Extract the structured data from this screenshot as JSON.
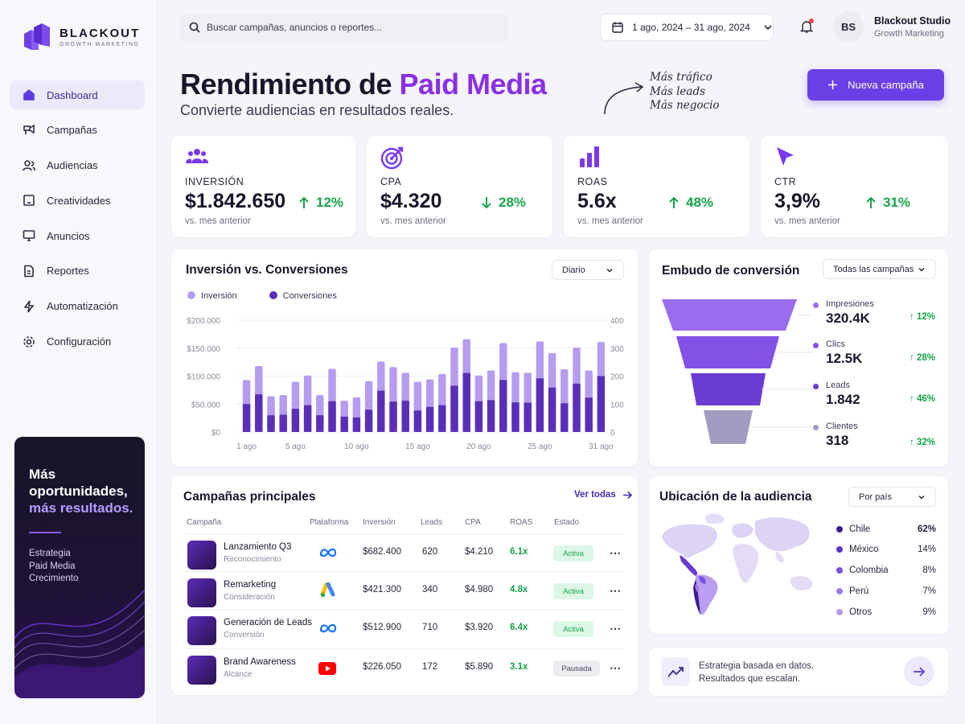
{
  "brand": {
    "name": "BLACKOUT",
    "tagline": "GROWTH MARKETING"
  },
  "sidebar": {
    "items": [
      {
        "label": "Dashboard",
        "icon": "home-icon",
        "active": true
      },
      {
        "label": "Campañas",
        "icon": "campaigns-icon"
      },
      {
        "label": "Audiencias",
        "icon": "users-icon"
      },
      {
        "label": "Creatividades",
        "icon": "image-icon"
      },
      {
        "label": "Anuncios",
        "icon": "monitor-icon"
      },
      {
        "label": "Reportes",
        "icon": "document-icon"
      },
      {
        "label": "Automatización",
        "icon": "bolt-icon"
      },
      {
        "label": "Configuración",
        "icon": "gear-icon"
      }
    ]
  },
  "promo": {
    "title_line1": "Más",
    "title_line2": "oportunidades,",
    "title_highlight": "más resultados.",
    "lines": [
      "Estrategia",
      "Paid Media",
      "Crecimiento"
    ]
  },
  "header": {
    "search_placeholder": "Buscar campañas, anuncios o reportes...",
    "date_range": "1 ago, 2024 – 31 ago, 2024",
    "user_initials": "BS",
    "user_name": "Blackout Studio",
    "user_role": "Growth Marketing"
  },
  "hero": {
    "title_part1": "Rendimiento de ",
    "title_accent": "Paid Media",
    "subtitle": "Convierte audiencias en resultados reales.",
    "script_lines": [
      "Más tráfico",
      "Más leads",
      "Más negocio"
    ],
    "cta": "Nueva campaña"
  },
  "kpis": [
    {
      "label": "INVERSIÓN",
      "value": "$1.842.650",
      "delta": "12%",
      "direction": "up",
      "note": "vs. mes anterior",
      "icon": "audience-icon"
    },
    {
      "label": "CPA",
      "value": "$4.320",
      "delta": "28%",
      "direction": "down",
      "note": "vs. mes anterior",
      "icon": "target-icon"
    },
    {
      "label": "ROAS",
      "value": "5.6x",
      "delta": "48%",
      "direction": "up",
      "note": "vs. mes anterior",
      "icon": "bar-chart-icon"
    },
    {
      "label": "CTR",
      "value": "3,9%",
      "delta": "31%",
      "direction": "up",
      "note": "vs. mes anterior",
      "icon": "cursor-icon"
    }
  ],
  "chart_section": {
    "title": "Inversión vs. Conversiones",
    "period": "Diario"
  },
  "chart_data": {
    "type": "bar",
    "series": [
      {
        "name": "Inversión",
        "color": "#b69cf0",
        "values": [
          93000,
          118000,
          64000,
          66000,
          90000,
          101000,
          66000,
          113000,
          56000,
          62000,
          91000,
          126000,
          116000,
          106000,
          90000,
          94000,
          104000,
          151000,
          166000,
          101000,
          110000,
          159000,
          107000,
          106000,
          162000,
          141000,
          112000,
          151000,
          110000,
          161000
        ]
      },
      {
        "name": "Conversiones",
        "color": "#5a2fb8",
        "values": [
          100,
          135,
          60,
          62,
          83,
          96,
          60,
          110,
          55,
          52,
          80,
          148,
          109,
          112,
          77,
          90,
          96,
          166,
          211,
          110,
          114,
          186,
          106,
          105,
          192,
          159,
          103,
          173,
          123,
          200
        ]
      }
    ],
    "x": [
      "1 ago",
      "2 ago",
      "3 ago",
      "4 ago",
      "5 ago",
      "6 ago",
      "7 ago",
      "8 ago",
      "9 ago",
      "10 ago",
      "11 ago",
      "12 ago",
      "13 ago",
      "14 ago",
      "15 ago",
      "16 ago",
      "17 ago",
      "18 ago",
      "19 ago",
      "20 ago",
      "21 ago",
      "22 ago",
      "23 ago",
      "24 ago",
      "25 ago",
      "26 ago",
      "27 ago",
      "28 ago",
      "29 ago",
      "31 ago"
    ],
    "x_tick_labels": [
      "1 ago",
      "5 ago",
      "10 ago",
      "15 ago",
      "20 ago",
      "25 ago",
      "31 ago"
    ],
    "y_left": {
      "ticks": [
        "$200.000",
        "$150.000",
        "$100.000",
        "$50.000",
        "$0"
      ],
      "range": [
        0,
        200000
      ]
    },
    "y_right": {
      "ticks": [
        "400",
        "300",
        "200",
        "100",
        "0"
      ],
      "range": [
        0,
        400
      ]
    },
    "legend": "top-left",
    "grid": true
  },
  "funnel": {
    "title": "Embudo de conversión",
    "filter": "Todas las campañas",
    "stages": [
      {
        "label": "Impresiones",
        "value": "320.4K",
        "delta": "12%",
        "color": "#9a6cf0"
      },
      {
        "label": "Clics",
        "value": "12.5K",
        "delta": "28%",
        "color": "#8351e6"
      },
      {
        "label": "Leads",
        "value": "1.842",
        "delta": "46%",
        "color": "#6a3cd1"
      },
      {
        "label": "Clientes",
        "value": "318",
        "delta": "32%",
        "color": "#a39cc0"
      }
    ]
  },
  "campaigns": {
    "title": "Campañas principales",
    "link": "Ver todas",
    "columns": [
      "Campaña",
      "Plataforma",
      "Inversión",
      "Leads",
      "CPA",
      "ROAS",
      "Estado"
    ],
    "rows": [
      {
        "name": "Lanzamiento Q3",
        "type": "Reconocimiento",
        "platform": "meta-icon",
        "investment": "$682.400",
        "leads": "620",
        "cpa": "$4.210",
        "roas": "6.1x",
        "status": "Activa",
        "state": "active"
      },
      {
        "name": "Remarketing",
        "type": "Consideración",
        "platform": "google-ads-icon",
        "investment": "$421.300",
        "leads": "340",
        "cpa": "$4.980",
        "roas": "4.8x",
        "status": "Activa",
        "state": "active"
      },
      {
        "name": "Generación de Leads",
        "type": "Conversión",
        "platform": "meta-icon",
        "investment": "$512.900",
        "leads": "710",
        "cpa": "$3.920",
        "roas": "6.4x",
        "status": "Activa",
        "state": "active"
      },
      {
        "name": "Brand Awareness",
        "type": "Alcance",
        "platform": "youtube-icon",
        "investment": "$226.050",
        "leads": "172",
        "cpa": "$5.890",
        "roas": "3.1x",
        "status": "Pausada",
        "state": "paused"
      }
    ]
  },
  "audience": {
    "title": "Ubicación de la audiencia",
    "filter": "Por país",
    "countries": [
      {
        "name": "Chile",
        "pct": "62%",
        "color": "#3b1d8f"
      },
      {
        "name": "México",
        "pct": "14%",
        "color": "#5b32c8"
      },
      {
        "name": "Colombia",
        "pct": "8%",
        "color": "#7a4fe0"
      },
      {
        "name": "Perú",
        "pct": "7%",
        "color": "#9d7aea"
      },
      {
        "name": "Otros",
        "pct": "9%",
        "color": "#b89df0"
      }
    ]
  },
  "banner": {
    "line1": "Estrategia basada en datos.",
    "line2": "Resultados que escalan."
  }
}
